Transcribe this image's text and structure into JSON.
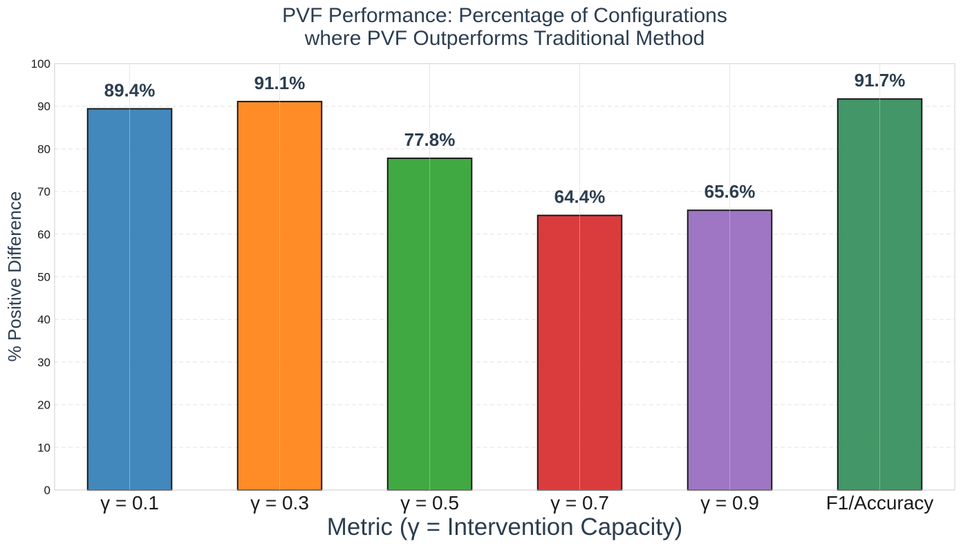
{
  "chart_data": {
    "type": "bar",
    "title_lines": [
      "PVF Performance: Percentage of Configurations",
      "where PVF Outperforms Traditional Method"
    ],
    "xlabel": "Metric (γ = Intervention Capacity)",
    "ylabel": "% Positive Difference",
    "categories": [
      "γ = 0.1",
      "γ = 0.3",
      "γ = 0.5",
      "γ = 0.7",
      "γ = 0.9",
      "F1/Accuracy"
    ],
    "values": [
      89.4,
      91.1,
      77.8,
      64.4,
      65.6,
      91.7
    ],
    "value_labels": [
      "89.4%",
      "91.1%",
      "77.8%",
      "64.4%",
      "65.6%",
      "91.7%"
    ],
    "colors": [
      "#2e7bb6",
      "#ff7f0e",
      "#2ca02c",
      "#d62728",
      "#9467bd",
      "#2e8b57"
    ],
    "ylim": [
      0,
      100
    ],
    "yticks": [
      0,
      10,
      20,
      30,
      40,
      50,
      60,
      70,
      80,
      90,
      100
    ],
    "grid": true,
    "legend": "none"
  }
}
